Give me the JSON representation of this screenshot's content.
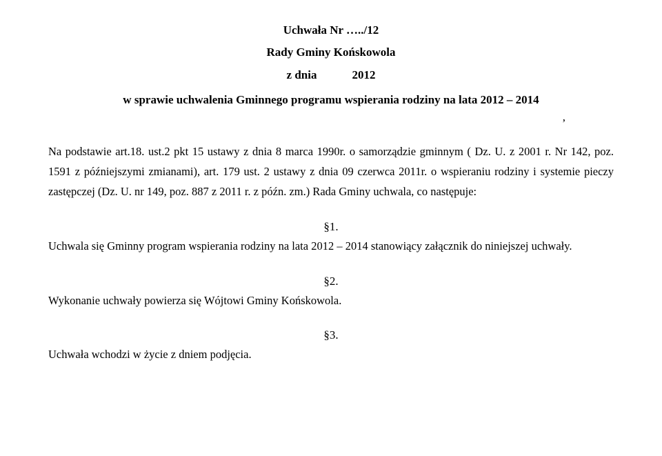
{
  "header": {
    "resolution_line": "Uchwała Nr …../12",
    "council_line": "Rady Gminy Końskowola",
    "date_label": "z dnia",
    "date_year": "2012",
    "subject": "w sprawie uchwalenia Gminnego programu wspierania rodziny na lata 2012 – 2014",
    "comma": ","
  },
  "basis": "Na podstawie art.18. ust.2 pkt 15 ustawy z dnia 8 marca 1990r. o samorządzie gminnym ( Dz. U. z 2001 r. Nr 142, poz. 1591 z późniejszymi zmianami), art. 179 ust. 2 ustawy z dnia 09 czerwca 2011r. o wspieraniu rodziny i systemie pieczy zastępczej (Dz. U. nr 149, poz. 887 z 2011 r. z późn. zm.) Rada Gminy uchwala, co następuje:",
  "sections": {
    "s1": {
      "num": "§1.",
      "text": "Uchwala się Gminny program wspierania rodziny na lata 2012 – 2014 stanowiący załącznik do niniejszej uchwały."
    },
    "s2": {
      "num": "§2.",
      "text": "Wykonanie uchwały powierza się Wójtowi Gminy Końskowola."
    },
    "s3": {
      "num": "§3.",
      "text": "Uchwała wchodzi w życie z dniem podjęcia."
    }
  }
}
